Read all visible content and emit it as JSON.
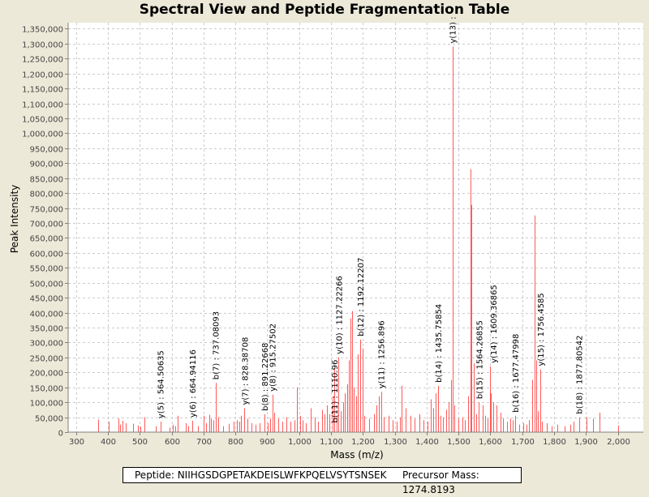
{
  "chart_data": {
    "type": "bar",
    "title": "Spectral View and Peptide Fragmentation Table",
    "xlabel": "Mass (m/z)",
    "ylabel": "Peak Intensity",
    "xlim": [
      275,
      2080
    ],
    "ylim": [
      0,
      1370000
    ],
    "xticks": [
      300,
      400,
      500,
      600,
      700,
      800,
      900,
      1000,
      1100,
      1200,
      1300,
      1400,
      1500,
      1600,
      1700,
      1800,
      1900,
      2000
    ],
    "xtick_labels": [
      "300",
      "400",
      "500",
      "600",
      "700",
      "800",
      "900",
      "1,000",
      "1,100",
      "1,200",
      "1,300",
      "1,400",
      "1,500",
      "1,600",
      "1,700",
      "1,800",
      "1,900",
      "2,000"
    ],
    "yticks": [
      0,
      50000,
      100000,
      150000,
      200000,
      250000,
      300000,
      350000,
      400000,
      450000,
      500000,
      550000,
      600000,
      650000,
      700000,
      750000,
      800000,
      850000,
      900000,
      950000,
      1000000,
      1050000,
      1100000,
      1150000,
      1200000,
      1250000,
      1300000,
      1350000
    ],
    "ytick_labels": [
      "0",
      "50,000",
      "100,000",
      "150,000",
      "200,000",
      "250,000",
      "300,000",
      "350,000",
      "400,000",
      "450,000",
      "500,000",
      "550,000",
      "600,000",
      "650,000",
      "700,000",
      "750,000",
      "800,000",
      "850,000",
      "900,000",
      "950,000",
      "1,000,000",
      "1,050,000",
      "1,100,000",
      "1,150,000",
      "1,200,000",
      "1,250,000",
      "1,300,000",
      "1,350,000"
    ],
    "grid": true,
    "series": [
      {
        "name": "peaks",
        "color": "#ff5a5a",
        "points": [
          [
            368,
            42000
          ],
          [
            402,
            35000
          ],
          [
            432,
            45000
          ],
          [
            438,
            25000
          ],
          [
            446,
            38000
          ],
          [
            455,
            30000
          ],
          [
            478,
            28000
          ],
          [
            493,
            22000
          ],
          [
            501,
            18000
          ],
          [
            514,
            50000
          ],
          [
            551,
            20000
          ],
          [
            564.5,
            35000
          ],
          [
            592,
            15000
          ],
          [
            604,
            25000
          ],
          [
            611,
            20000
          ],
          [
            618,
            55000
          ],
          [
            643,
            30000
          ],
          [
            652,
            20000
          ],
          [
            664.9,
            38000
          ],
          [
            683,
            20000
          ],
          [
            700,
            55000
          ],
          [
            708,
            30000
          ],
          [
            718,
            58000
          ],
          [
            724,
            45000
          ],
          [
            730,
            40000
          ],
          [
            737.1,
            165000
          ],
          [
            745,
            50000
          ],
          [
            762,
            20000
          ],
          [
            780,
            28000
          ],
          [
            795,
            35000
          ],
          [
            804,
            40000
          ],
          [
            812,
            35000
          ],
          [
            818,
            55000
          ],
          [
            828.4,
            80000
          ],
          [
            838,
            45000
          ],
          [
            851,
            30000
          ],
          [
            862,
            25000
          ],
          [
            876,
            30000
          ],
          [
            891.2,
            60000
          ],
          [
            902,
            30000
          ],
          [
            908,
            45000
          ],
          [
            915.3,
            125000
          ],
          [
            922,
            65000
          ],
          [
            935,
            45000
          ],
          [
            948,
            35000
          ],
          [
            960,
            50000
          ],
          [
            972,
            35000
          ],
          [
            985,
            40000
          ],
          [
            993,
            150000
          ],
          [
            1002,
            55000
          ],
          [
            1012,
            40000
          ],
          [
            1022,
            30000
          ],
          [
            1035,
            80000
          ],
          [
            1048,
            50000
          ],
          [
            1060,
            35000
          ],
          [
            1072,
            75000
          ],
          [
            1080,
            60000
          ],
          [
            1087,
            90000
          ],
          [
            1095,
            60000
          ],
          [
            1106,
            120000
          ],
          [
            1110,
            215000
          ],
          [
            1118,
            55000
          ],
          [
            1124,
            250000
          ],
          [
            1131,
            70000
          ],
          [
            1138,
            100000
          ],
          [
            1144,
            130000
          ],
          [
            1151,
            160000
          ],
          [
            1156,
            240000
          ],
          [
            1162,
            380000
          ],
          [
            1166,
            405000
          ],
          [
            1172,
            150000
          ],
          [
            1178,
            120000
          ],
          [
            1185,
            260000
          ],
          [
            1192,
            310000
          ],
          [
            1198,
            280000
          ],
          [
            1205,
            55000
          ],
          [
            1220,
            45000
          ],
          [
            1235,
            60000
          ],
          [
            1243,
            90000
          ],
          [
            1249,
            120000
          ],
          [
            1256.9,
            135000
          ],
          [
            1266,
            50000
          ],
          [
            1280,
            55000
          ],
          [
            1293,
            40000
          ],
          [
            1306,
            35000
          ],
          [
            1315,
            50000
          ],
          [
            1322,
            155000
          ],
          [
            1335,
            80000
          ],
          [
            1350,
            55000
          ],
          [
            1362,
            45000
          ],
          [
            1377,
            60000
          ],
          [
            1390,
            40000
          ],
          [
            1402,
            35000
          ],
          [
            1412,
            110000
          ],
          [
            1420,
            80000
          ],
          [
            1427,
            130000
          ],
          [
            1435.8,
            155000
          ],
          [
            1443,
            55000
          ],
          [
            1452,
            50000
          ],
          [
            1462,
            75000
          ],
          [
            1470,
            100000
          ],
          [
            1477,
            175000
          ],
          [
            1481,
            1290000
          ],
          [
            1487,
            90000
          ],
          [
            1500,
            45000
          ],
          [
            1512,
            50000
          ],
          [
            1520,
            40000
          ],
          [
            1530,
            120000
          ],
          [
            1538,
            880000
          ],
          [
            1541,
            760000
          ],
          [
            1547,
            230000
          ],
          [
            1556,
            60000
          ],
          [
            1564.3,
            100000
          ],
          [
            1575,
            90000
          ],
          [
            1583,
            55000
          ],
          [
            1590,
            45000
          ],
          [
            1598,
            220000
          ],
          [
            1602,
            130000
          ],
          [
            1609.4,
            100000
          ],
          [
            1620,
            90000
          ],
          [
            1632,
            65000
          ],
          [
            1640,
            45000
          ],
          [
            1653,
            35000
          ],
          [
            1662,
            45000
          ],
          [
            1670,
            40000
          ],
          [
            1677.5,
            55000
          ],
          [
            1690,
            25000
          ],
          [
            1702,
            30000
          ],
          [
            1714,
            25000
          ],
          [
            1722,
            40000
          ],
          [
            1732,
            175000
          ],
          [
            1740,
            725000
          ],
          [
            1745,
            240000
          ],
          [
            1750,
            70000
          ],
          [
            1756.5,
            210000
          ],
          [
            1762,
            35000
          ],
          [
            1777,
            30000
          ],
          [
            1792,
            20000
          ],
          [
            1811,
            25000
          ],
          [
            1832,
            20000
          ],
          [
            1850,
            25000
          ],
          [
            1862,
            35000
          ],
          [
            1877.8,
            50000
          ],
          [
            1903,
            50000
          ],
          [
            1922,
            45000
          ],
          [
            1943,
            65000
          ],
          [
            2000,
            22000
          ]
        ]
      }
    ],
    "annotations": [
      {
        "label": "y(5) : 564.50635",
        "x": 564.5,
        "y": 35000
      },
      {
        "label": "y(6) : 664.94116",
        "x": 664.9,
        "y": 38000
      },
      {
        "label": "b(7) : 737.08093",
        "x": 737.1,
        "y": 165000
      },
      {
        "label": "y(7) : 828.38708",
        "x": 828.4,
        "y": 80000
      },
      {
        "label": "b(8) : 891.22668",
        "x": 891.2,
        "y": 60000
      },
      {
        "label": "y(8) : 915.27502",
        "x": 915.3,
        "y": 125000
      },
      {
        "label": "b(11) : 1110.96",
        "x": 1110,
        "y": 20000
      },
      {
        "label": "y(10) : 1127.22266",
        "x": 1124,
        "y": 250000
      },
      {
        "label": "b(12) : 1192.12207",
        "x": 1192,
        "y": 310000
      },
      {
        "label": "y(11) : 1256.896",
        "x": 1256.9,
        "y": 135000
      },
      {
        "label": "b(14) : 1435.75854",
        "x": 1435.8,
        "y": 155000
      },
      {
        "label": "y(13) :",
        "x": 1481,
        "y": 1290000
      },
      {
        "label": "b(15) : 1564.26855",
        "x": 1564.3,
        "y": 100000
      },
      {
        "label": "y(14) : 1609.36865",
        "x": 1609.4,
        "y": 220000
      },
      {
        "label": "b(16) : 1677.47998",
        "x": 1677.5,
        "y": 55000
      },
      {
        "label": "y(15) : 1756.4585",
        "x": 1756.5,
        "y": 210000
      },
      {
        "label": "b(18) : 1877.80542",
        "x": 1877.8,
        "y": 50000
      }
    ]
  },
  "info": {
    "peptide": "Peptide: NIIHGSDGPETAKDEISLWFKPQELVSYTSNSEK",
    "precursor": "Precursor Mass: 1274.8193"
  }
}
